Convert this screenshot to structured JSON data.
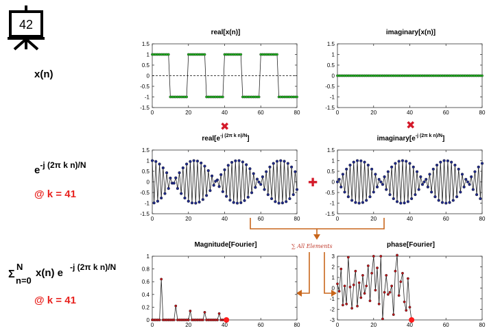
{
  "slide_number": "42",
  "row_labels": {
    "x_n": "x(n)",
    "kernel_base": "e",
    "kernel_exp": "-j (2π k n)/N",
    "k1": "@ k = 41",
    "sum_sigma": "Σ",
    "sum_upper": "N",
    "sum_lower": "n=0",
    "sum_body": "x(n) e",
    "sum_exp": "-j (2π k n)/N",
    "k2": "@ k = 41"
  },
  "operators": {
    "times_symbol": "✖",
    "plus_symbol": "✚",
    "sum_annotation": "∑ All Elements"
  },
  "colors": {
    "green_marker": "#22b822",
    "blue_marker": "#1f2a8c",
    "red_marker": "#c0151a",
    "red_text": "#e8211d",
    "arrow": "#c8651a"
  },
  "chart_data": [
    {
      "id": "real_x",
      "type": "line",
      "title": "real[x(n)]",
      "xlim": [
        0,
        80
      ],
      "ylim": [
        -1.5,
        1.5
      ],
      "xticks": [
        0,
        20,
        40,
        60,
        80
      ],
      "yticks": [
        -1.5,
        -1,
        -0.5,
        0,
        0.5,
        1,
        1.5
      ],
      "dashed_zero": true,
      "x": [
        0,
        1,
        2,
        3,
        4,
        5,
        6,
        7,
        8,
        9,
        10,
        11,
        12,
        13,
        14,
        15,
        16,
        17,
        18,
        19,
        20,
        21,
        22,
        23,
        24,
        25,
        26,
        27,
        28,
        29,
        30,
        31,
        32,
        33,
        34,
        35,
        36,
        37,
        38,
        39,
        40,
        41,
        42,
        43,
        44,
        45,
        46,
        47,
        48,
        49,
        50,
        51,
        52,
        53,
        54,
        55,
        56,
        57,
        58,
        59,
        60,
        61,
        62,
        63,
        64,
        65,
        66,
        67,
        68,
        69,
        70,
        71,
        72,
        73,
        74,
        75,
        76,
        77,
        78,
        79,
        80
      ],
      "values": [
        1,
        1,
        1,
        1,
        1,
        1,
        1,
        1,
        1,
        1,
        -1,
        -1,
        -1,
        -1,
        -1,
        -1,
        -1,
        -1,
        -1,
        -1,
        1,
        1,
        1,
        1,
        1,
        1,
        1,
        1,
        1,
        1,
        -1,
        -1,
        -1,
        -1,
        -1,
        -1,
        -1,
        -1,
        -1,
        -1,
        1,
        1,
        1,
        1,
        1,
        1,
        1,
        1,
        1,
        1,
        -1,
        -1,
        -1,
        -1,
        -1,
        -1,
        -1,
        -1,
        -1,
        -1,
        1,
        1,
        1,
        1,
        1,
        1,
        1,
        1,
        1,
        1,
        -1,
        -1,
        -1,
        -1,
        -1,
        -1,
        -1,
        -1,
        -1,
        -1,
        -1
      ],
      "marker_color": "#22b822"
    },
    {
      "id": "imag_x",
      "type": "line",
      "title": "imaginary[x(n)]",
      "xlim": [
        0,
        80
      ],
      "ylim": [
        -1.5,
        1.5
      ],
      "xticks": [
        0,
        20,
        40,
        60,
        80
      ],
      "yticks": [
        -1.5,
        -1,
        -0.5,
        0,
        0.5,
        1,
        1.5
      ],
      "dashed_zero": true,
      "x": [
        0,
        1,
        2,
        3,
        4,
        5,
        6,
        7,
        8,
        9,
        10,
        11,
        12,
        13,
        14,
        15,
        16,
        17,
        18,
        19,
        20,
        21,
        22,
        23,
        24,
        25,
        26,
        27,
        28,
        29,
        30,
        31,
        32,
        33,
        34,
        35,
        36,
        37,
        38,
        39,
        40,
        41,
        42,
        43,
        44,
        45,
        46,
        47,
        48,
        49,
        50,
        51,
        52,
        53,
        54,
        55,
        56,
        57,
        58,
        59,
        60,
        61,
        62,
        63,
        64,
        65,
        66,
        67,
        68,
        69,
        70,
        71,
        72,
        73,
        74,
        75,
        76,
        77,
        78,
        79,
        80
      ],
      "values": [
        0,
        0,
        0,
        0,
        0,
        0,
        0,
        0,
        0,
        0,
        0,
        0,
        0,
        0,
        0,
        0,
        0,
        0,
        0,
        0,
        0,
        0,
        0,
        0,
        0,
        0,
        0,
        0,
        0,
        0,
        0,
        0,
        0,
        0,
        0,
        0,
        0,
        0,
        0,
        0,
        0,
        0,
        0,
        0,
        0,
        0,
        0,
        0,
        0,
        0,
        0,
        0,
        0,
        0,
        0,
        0,
        0,
        0,
        0,
        0,
        0,
        0,
        0,
        0,
        0,
        0,
        0,
        0,
        0,
        0,
        0,
        0,
        0,
        0,
        0,
        0,
        0,
        0,
        0,
        0,
        0
      ],
      "marker_color": "#22b822"
    },
    {
      "id": "real_kernel",
      "type": "line",
      "title_base": "real[e",
      "title_sup": "-j (2π k n)/N",
      "title_end": "]",
      "xlim": [
        0,
        80
      ],
      "ylim": [
        -1.5,
        1.5
      ],
      "xticks": [
        0,
        20,
        40,
        60,
        80
      ],
      "yticks": [
        -1.5,
        -1,
        -0.5,
        0,
        0.5,
        1,
        1.5
      ],
      "x": [
        0,
        1,
        2,
        3,
        4,
        5,
        6,
        7,
        8,
        9,
        10,
        11,
        12,
        13,
        14,
        15,
        16,
        17,
        18,
        19,
        20,
        21,
        22,
        23,
        24,
        25,
        26,
        27,
        28,
        29,
        30,
        31,
        32,
        33,
        34,
        35,
        36,
        37,
        38,
        39,
        40,
        41,
        42,
        43,
        44,
        45,
        46,
        47,
        48,
        49,
        50,
        51,
        52,
        53,
        54,
        55,
        56,
        57,
        58,
        59,
        60,
        61,
        62,
        63,
        64,
        65,
        66,
        67,
        68,
        69,
        70,
        71,
        72,
        73,
        74,
        75,
        76,
        77,
        78,
        79,
        80
      ],
      "values": [
        1,
        -0.99,
        0.96,
        -0.91,
        0.84,
        -0.76,
        0.66,
        -0.55,
        0.43,
        -0.31,
        0.18,
        -0.06,
        -0.06,
        0.19,
        -0.31,
        0.43,
        -0.55,
        0.66,
        -0.76,
        0.84,
        -0.91,
        0.96,
        -0.99,
        1,
        -1,
        0.98,
        -0.95,
        0.89,
        -0.83,
        0.74,
        -0.64,
        0.53,
        -0.41,
        0.28,
        -0.16,
        0.03,
        0.09,
        -0.22,
        0.34,
        -0.46,
        0.57,
        -0.68,
        0.78,
        -0.86,
        0.92,
        -0.97,
        0.99,
        -1,
        1,
        -0.98,
        0.94,
        -0.88,
        0.81,
        -0.72,
        0.62,
        -0.51,
        0.39,
        -0.26,
        0.13,
        -0.01,
        -0.12,
        0.24,
        -0.36,
        0.48,
        -0.6,
        0.7,
        -0.79,
        0.87,
        -0.93,
        0.97,
        -1,
        1,
        -0.99,
        0.97,
        -0.93,
        0.87,
        -0.79,
        0.7,
        -0.6,
        0.48,
        -0.36
      ],
      "marker_color": "#1f2a8c"
    },
    {
      "id": "imag_kernel",
      "type": "line",
      "title_base": "imaginary[e",
      "title_sup": "-j (2π k n)/N",
      "title_end": "]",
      "xlim": [
        0,
        80
      ],
      "ylim": [
        -1.5,
        1.5
      ],
      "xticks": [
        0,
        20,
        40,
        60,
        80
      ],
      "yticks": [
        -1.5,
        -1,
        -0.5,
        0,
        0.5,
        1,
        1.5
      ],
      "x": [
        0,
        1,
        2,
        3,
        4,
        5,
        6,
        7,
        8,
        9,
        10,
        11,
        12,
        13,
        14,
        15,
        16,
        17,
        18,
        19,
        20,
        21,
        22,
        23,
        24,
        25,
        26,
        27,
        28,
        29,
        30,
        31,
        32,
        33,
        34,
        35,
        36,
        37,
        38,
        39,
        40,
        41,
        42,
        43,
        44,
        45,
        46,
        47,
        48,
        49,
        50,
        51,
        52,
        53,
        54,
        55,
        56,
        57,
        58,
        59,
        60,
        61,
        62,
        63,
        64,
        65,
        66,
        67,
        68,
        69,
        70,
        71,
        72,
        73,
        74,
        75,
        76,
        77,
        78,
        79,
        80
      ],
      "values": [
        0,
        0.12,
        -0.24,
        0.36,
        -0.48,
        0.6,
        -0.7,
        0.79,
        -0.87,
        0.93,
        -0.97,
        1,
        -1,
        0.99,
        -0.97,
        0.93,
        -0.87,
        0.79,
        -0.7,
        0.6,
        -0.48,
        0.36,
        -0.24,
        0.12,
        0,
        -0.12,
        0.24,
        -0.36,
        0.48,
        -0.6,
        0.7,
        -0.79,
        0.87,
        -0.93,
        0.97,
        -1,
        1,
        -0.99,
        0.97,
        -0.93,
        0.87,
        -0.79,
        0.7,
        -0.6,
        0.48,
        -0.36,
        0.24,
        -0.12,
        0,
        0.12,
        -0.24,
        0.36,
        -0.48,
        0.6,
        -0.7,
        0.79,
        -0.87,
        0.93,
        -0.97,
        1,
        -1,
        0.99,
        -0.97,
        0.93,
        -0.87,
        0.79,
        -0.7,
        0.6,
        -0.48,
        0.36,
        -0.24,
        0.12,
        0,
        -0.12,
        0.24,
        -0.36,
        0.48,
        -0.6,
        0.7,
        -0.79,
        0.87
      ],
      "marker_color": "#1f2a8c"
    },
    {
      "id": "magnitude",
      "type": "line",
      "title": "Magnitude[Fourier]",
      "xlim": [
        0,
        80
      ],
      "ylim": [
        0,
        1
      ],
      "xticks": [
        0,
        20,
        40,
        60,
        80
      ],
      "yticks": [
        0,
        0.2,
        0.4,
        0.6,
        0.8,
        1
      ],
      "x": [
        0,
        1,
        2,
        3,
        4,
        5,
        6,
        7,
        8,
        9,
        10,
        11,
        12,
        13,
        14,
        15,
        16,
        17,
        18,
        19,
        20,
        21,
        22,
        23,
        24,
        25,
        26,
        27,
        28,
        29,
        30,
        31,
        32,
        33,
        34,
        35,
        36,
        37,
        38,
        39,
        40,
        41
      ],
      "values": [
        0,
        0,
        0,
        0,
        0,
        0.64,
        0,
        0,
        0,
        0,
        0,
        0,
        0,
        0.22,
        0,
        0,
        0,
        0,
        0,
        0,
        0,
        0.14,
        0,
        0,
        0,
        0,
        0,
        0,
        0,
        0.12,
        0,
        0,
        0,
        0,
        0,
        0,
        0,
        0.1,
        0,
        0,
        0,
        0
      ],
      "current": {
        "x": 41,
        "y": 0
      },
      "marker_color": "#c0151a"
    },
    {
      "id": "phase",
      "type": "line",
      "title": "phase[Fourier]",
      "xlim": [
        0,
        80
      ],
      "ylim": [
        -3,
        3
      ],
      "xticks": [
        0,
        20,
        40,
        60,
        80
      ],
      "yticks": [
        -3,
        -2,
        -1,
        0,
        1,
        2,
        3
      ],
      "x": [
        0,
        1,
        2,
        3,
        4,
        5,
        6,
        7,
        8,
        9,
        10,
        11,
        12,
        13,
        14,
        15,
        16,
        17,
        18,
        19,
        20,
        21,
        22,
        23,
        24,
        25,
        26,
        27,
        28,
        29,
        30,
        31,
        32,
        33,
        34,
        35,
        36,
        37,
        38,
        39,
        40,
        41
      ],
      "values": [
        0.4,
        -0.3,
        1.8,
        -1.6,
        0.2,
        -1.5,
        2.9,
        0.1,
        -1.9,
        0.3,
        1.6,
        -1.7,
        0.5,
        -0.9,
        1.2,
        -0.5,
        0.2,
        2.1,
        -1.2,
        1.4,
        3.0,
        -0.2,
        1.9,
        -1.5,
        3.0,
        -2.9,
        -0.4,
        1.2,
        -0.6,
        -0.4,
        0.2,
        -2.5,
        1.6,
        3.1,
        -0.7,
        0.6,
        1.4,
        -1.3,
        -2.1,
        0.9,
        -1.8,
        -3.0
      ],
      "current": {
        "x": 41,
        "y": -3.0
      },
      "marker_color": "#c0151a"
    }
  ]
}
